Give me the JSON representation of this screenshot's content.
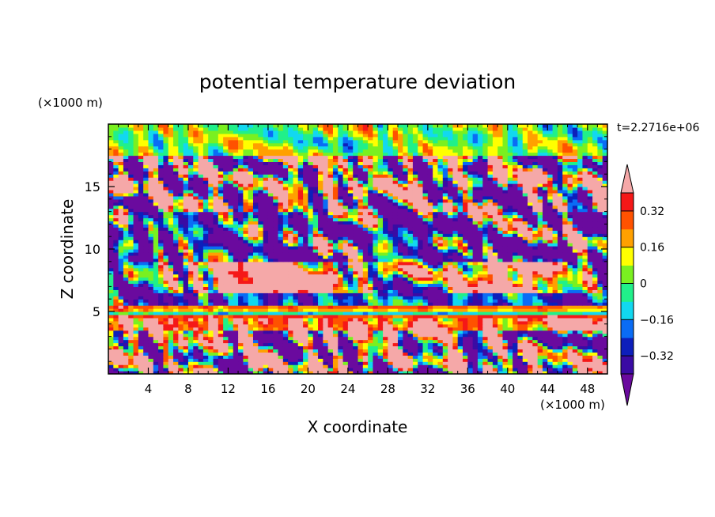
{
  "chart_data": {
    "type": "heatmap",
    "title": "potential temperature deviation",
    "time_label": "t=2.2716e+06",
    "xlabel": "X coordinate",
    "ylabel": "Z coordinate",
    "x_unit": "(×1000 m)",
    "y_unit": "(×1000 m)",
    "xlim": [
      0,
      50
    ],
    "ylim": [
      0,
      20
    ],
    "x_ticks": [
      4,
      8,
      12,
      16,
      20,
      24,
      28,
      32,
      36,
      40,
      44,
      48
    ],
    "y_ticks": [
      5,
      10,
      15
    ],
    "colorbar": {
      "tick_values": [
        0.32,
        0.16,
        0,
        -0.16,
        -0.32
      ],
      "tick_labels": [
        "0.32",
        "0.16",
        "0",
        "−0.16",
        "−0.32"
      ],
      "levels": [
        -0.4,
        -0.32,
        -0.24,
        -0.16,
        -0.08,
        0,
        0.08,
        0.16,
        0.24,
        0.32,
        0.4
      ],
      "colors": [
        "#6a0a9e",
        "#3a0ba4",
        "#0d1fbb",
        "#0a6cf5",
        "#12d8f0",
        "#20f08a",
        "#7af020",
        "#ffff00",
        "#ffa000",
        "#ff5200",
        "#f51818",
        "#f5a8a8"
      ],
      "extend": "both"
    },
    "bands": [
      {
        "z": [
          17.5,
          20
        ],
        "dominant": 0.04
      },
      {
        "z": [
          13,
          17.5
        ],
        "dominant": "mixed"
      },
      {
        "z": [
          9,
          13
        ],
        "dominant": -0.36
      },
      {
        "z": [
          6.5,
          9
        ],
        "dominant": 0.42
      },
      {
        "z": [
          5.5,
          6.5
        ],
        "dominant": -0.3
      },
      {
        "z": [
          4.3,
          5.5
        ],
        "dominant": 0.1
      },
      {
        "z": [
          3.5,
          4.3
        ],
        "dominant": 0.42
      },
      {
        "z": [
          0,
          3.5
        ],
        "dominant": "mixed"
      }
    ]
  }
}
